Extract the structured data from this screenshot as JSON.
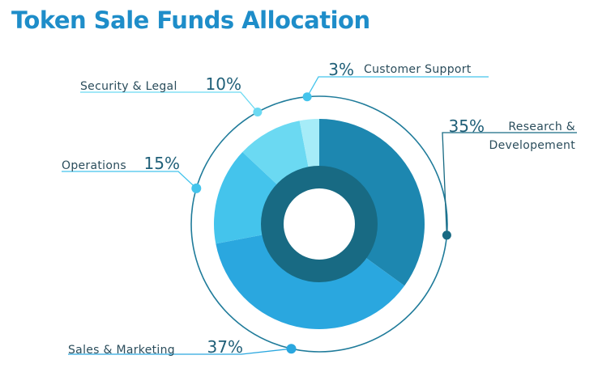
{
  "chart_data": {
    "type": "pie",
    "title": "Token Sale Funds Allocation",
    "categories": [
      "Research & Developement",
      "Sales & Marketing",
      "Operations",
      "Security & Legal",
      "Customer Support"
    ],
    "values": [
      35,
      37,
      15,
      10,
      3
    ],
    "value_labels": [
      "35%",
      "37%",
      "15%",
      "10%",
      "3%"
    ],
    "label_lines": [
      [
        "Research &",
        "Developement"
      ],
      [
        "Sales & Marketing"
      ],
      [
        "Operations"
      ],
      [
        "Security & Legal"
      ],
      [
        "Customer Support"
      ]
    ],
    "colors": [
      "#1d87b0",
      "#2aa7df",
      "#44c4ec",
      "#6bd9f2",
      "#a6ecf8"
    ],
    "inner_ring_color": "#186a83",
    "outline_color": "#1f7b9a",
    "title_color": "#1e8dc9"
  }
}
